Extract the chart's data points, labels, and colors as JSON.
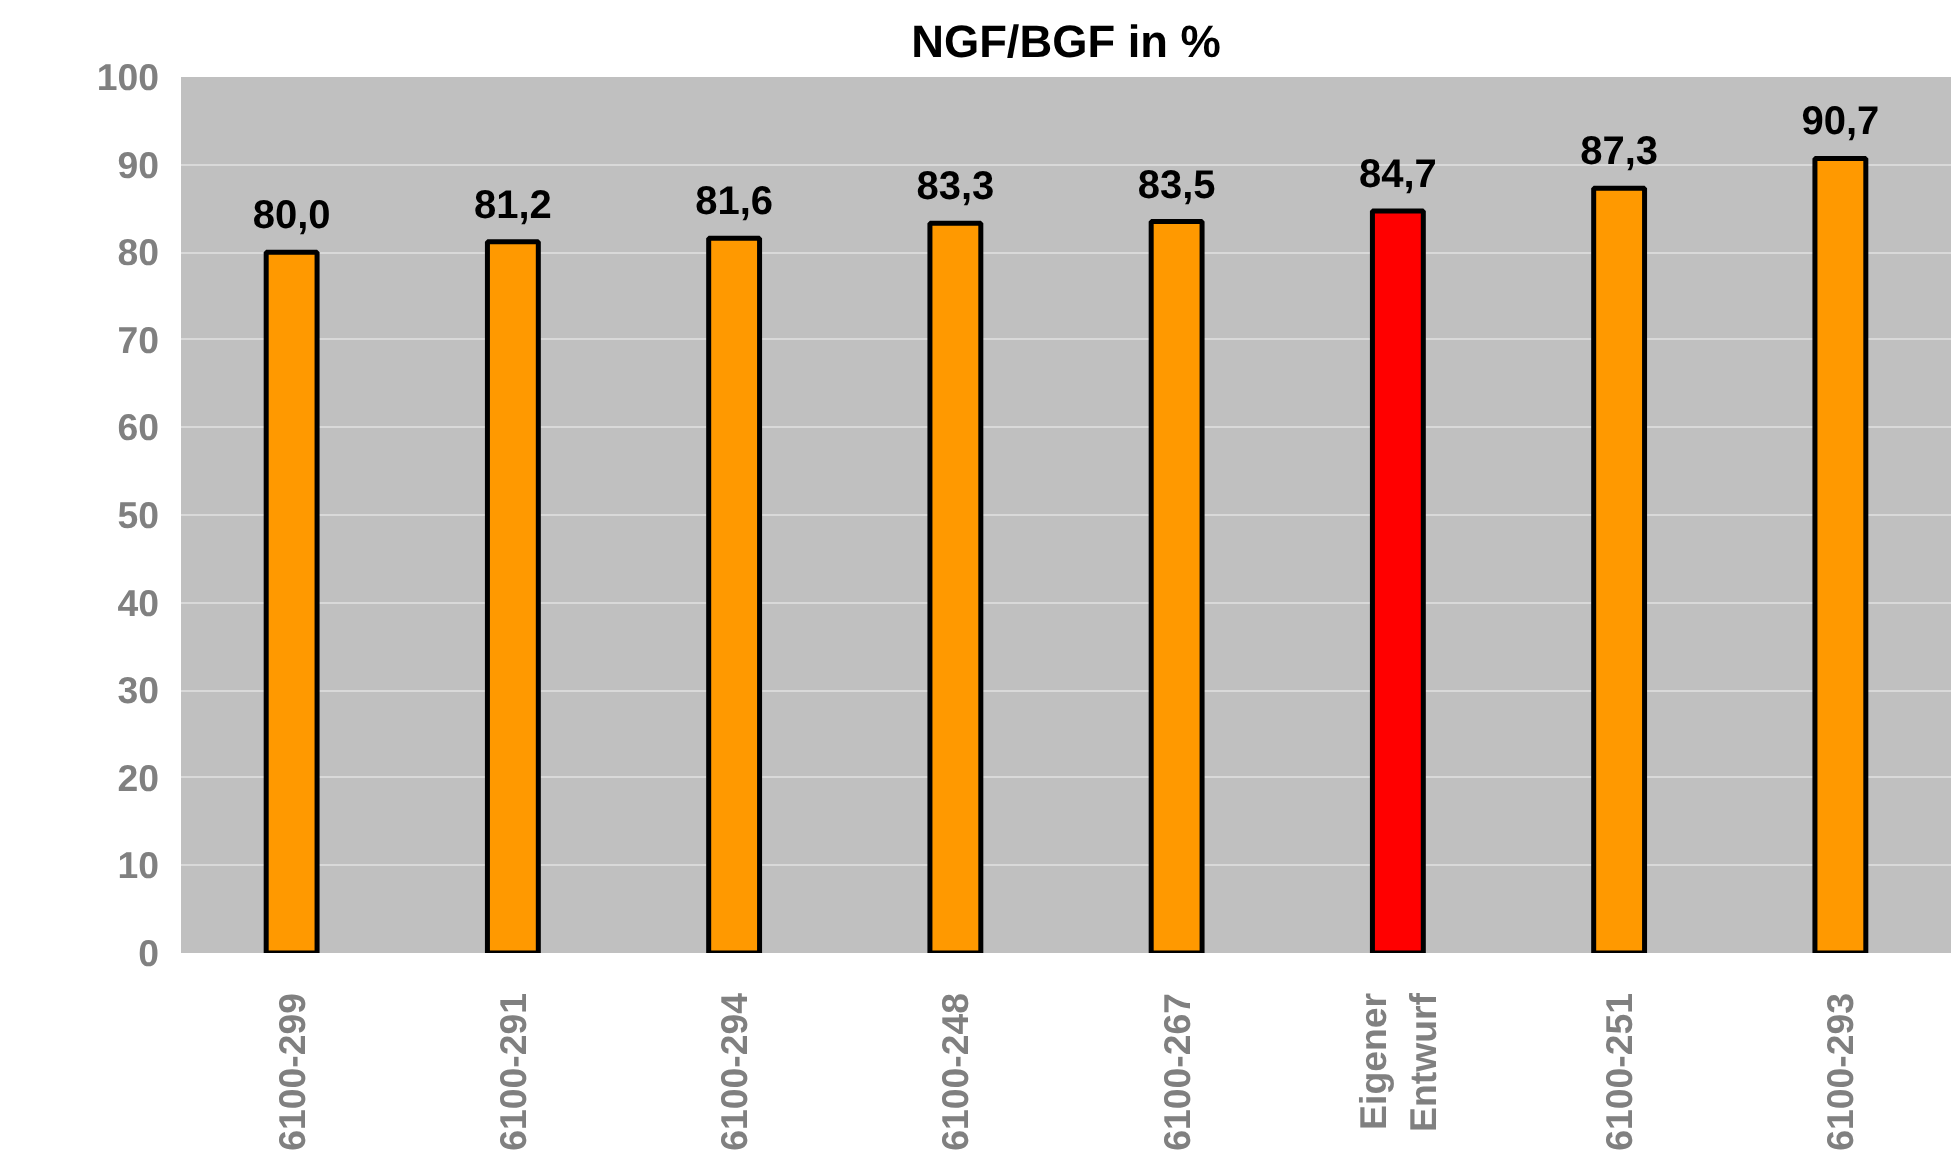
{
  "chart_data": {
    "type": "bar",
    "title": "NGF/BGF in %",
    "categories": [
      "6100-299",
      "6100-291",
      "6100-294",
      "6100-248",
      "6100-267",
      "Eigener Entwurf",
      "6100-251",
      "6100-293"
    ],
    "values": [
      80.0,
      81.2,
      81.6,
      83.3,
      83.5,
      84.7,
      87.3,
      90.7
    ],
    "colors": [
      "#ff9900",
      "#ff9900",
      "#ff9900",
      "#ff9900",
      "#ff9900",
      "#ff0000",
      "#ff9900",
      "#ff9900"
    ],
    "value_labels": [
      "80,0",
      "81,2",
      "81,6",
      "83,3",
      "83,5",
      "84,7",
      "87,3",
      "90,7"
    ],
    "ylim": [
      0,
      100
    ],
    "yticks": [
      0,
      10,
      20,
      30,
      40,
      50,
      60,
      70,
      80,
      90,
      100
    ],
    "grid": "y"
  }
}
